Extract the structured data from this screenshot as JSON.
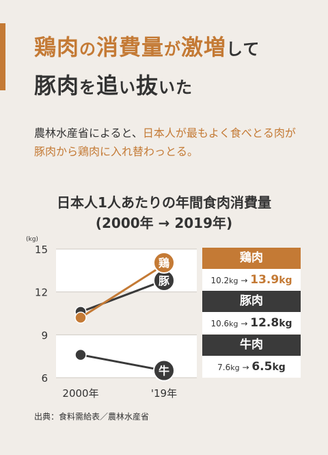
{
  "headline": {
    "line1": [
      {
        "text": "鶏肉",
        "accent": true,
        "small": false
      },
      {
        "text": "の",
        "accent": true,
        "small": true
      },
      {
        "text": "消費量",
        "accent": true,
        "small": false
      },
      {
        "text": "が",
        "accent": true,
        "small": true
      },
      {
        "text": "激増",
        "accent": true,
        "small": false
      },
      {
        "text": "して",
        "accent": false,
        "small": true
      }
    ],
    "line2": [
      {
        "text": "豚肉",
        "small": false
      },
      {
        "text": "を",
        "small": true
      },
      {
        "text": "追",
        "small": false
      },
      {
        "text": "い",
        "small": true
      },
      {
        "text": "抜",
        "small": false
      },
      {
        "text": "いた",
        "small": true
      }
    ]
  },
  "lead": {
    "line1_plain": "農林水産省によると、",
    "line1_accent": "日本人が最もよく食べとる肉が",
    "line2_accent": "豚肉から鶏肉に入れ替わっとる。"
  },
  "colors": {
    "chicken": "#c47a35",
    "pork": "#3a3a3a",
    "beef": "#3a3a3a",
    "accent": "#c47a35"
  },
  "chart_data": {
    "type": "line",
    "title": "日本人1人あたりの年間食肉消費量",
    "subtitle": "(2000年 → 2019年)",
    "y_unit": "(kg)",
    "ylim": [
      6,
      15
    ],
    "yticks": [
      "15",
      "12",
      "9",
      "6"
    ],
    "categories": [
      "2000年",
      "'19年"
    ],
    "series": [
      {
        "name": "鶏肉",
        "label": "鶏",
        "values": [
          10.2,
          13.9
        ]
      },
      {
        "name": "豚肉",
        "label": "豚",
        "values": [
          10.6,
          12.8
        ]
      },
      {
        "name": "牛肉",
        "label": "牛",
        "values": [
          7.6,
          6.5
        ]
      }
    ]
  },
  "legend": [
    {
      "name": "鶏肉",
      "from": "10.2",
      "to": "13.9",
      "unit": "kg",
      "arrow": "→"
    },
    {
      "name": "豚肉",
      "from": "10.6",
      "to": "12.8",
      "unit": "kg",
      "arrow": "→"
    },
    {
      "name": "牛肉",
      "from": "7.6",
      "to": "6.5",
      "unit": "kg",
      "arrow": "→"
    }
  ],
  "source": "出典：食料需給表／農林水産省"
}
